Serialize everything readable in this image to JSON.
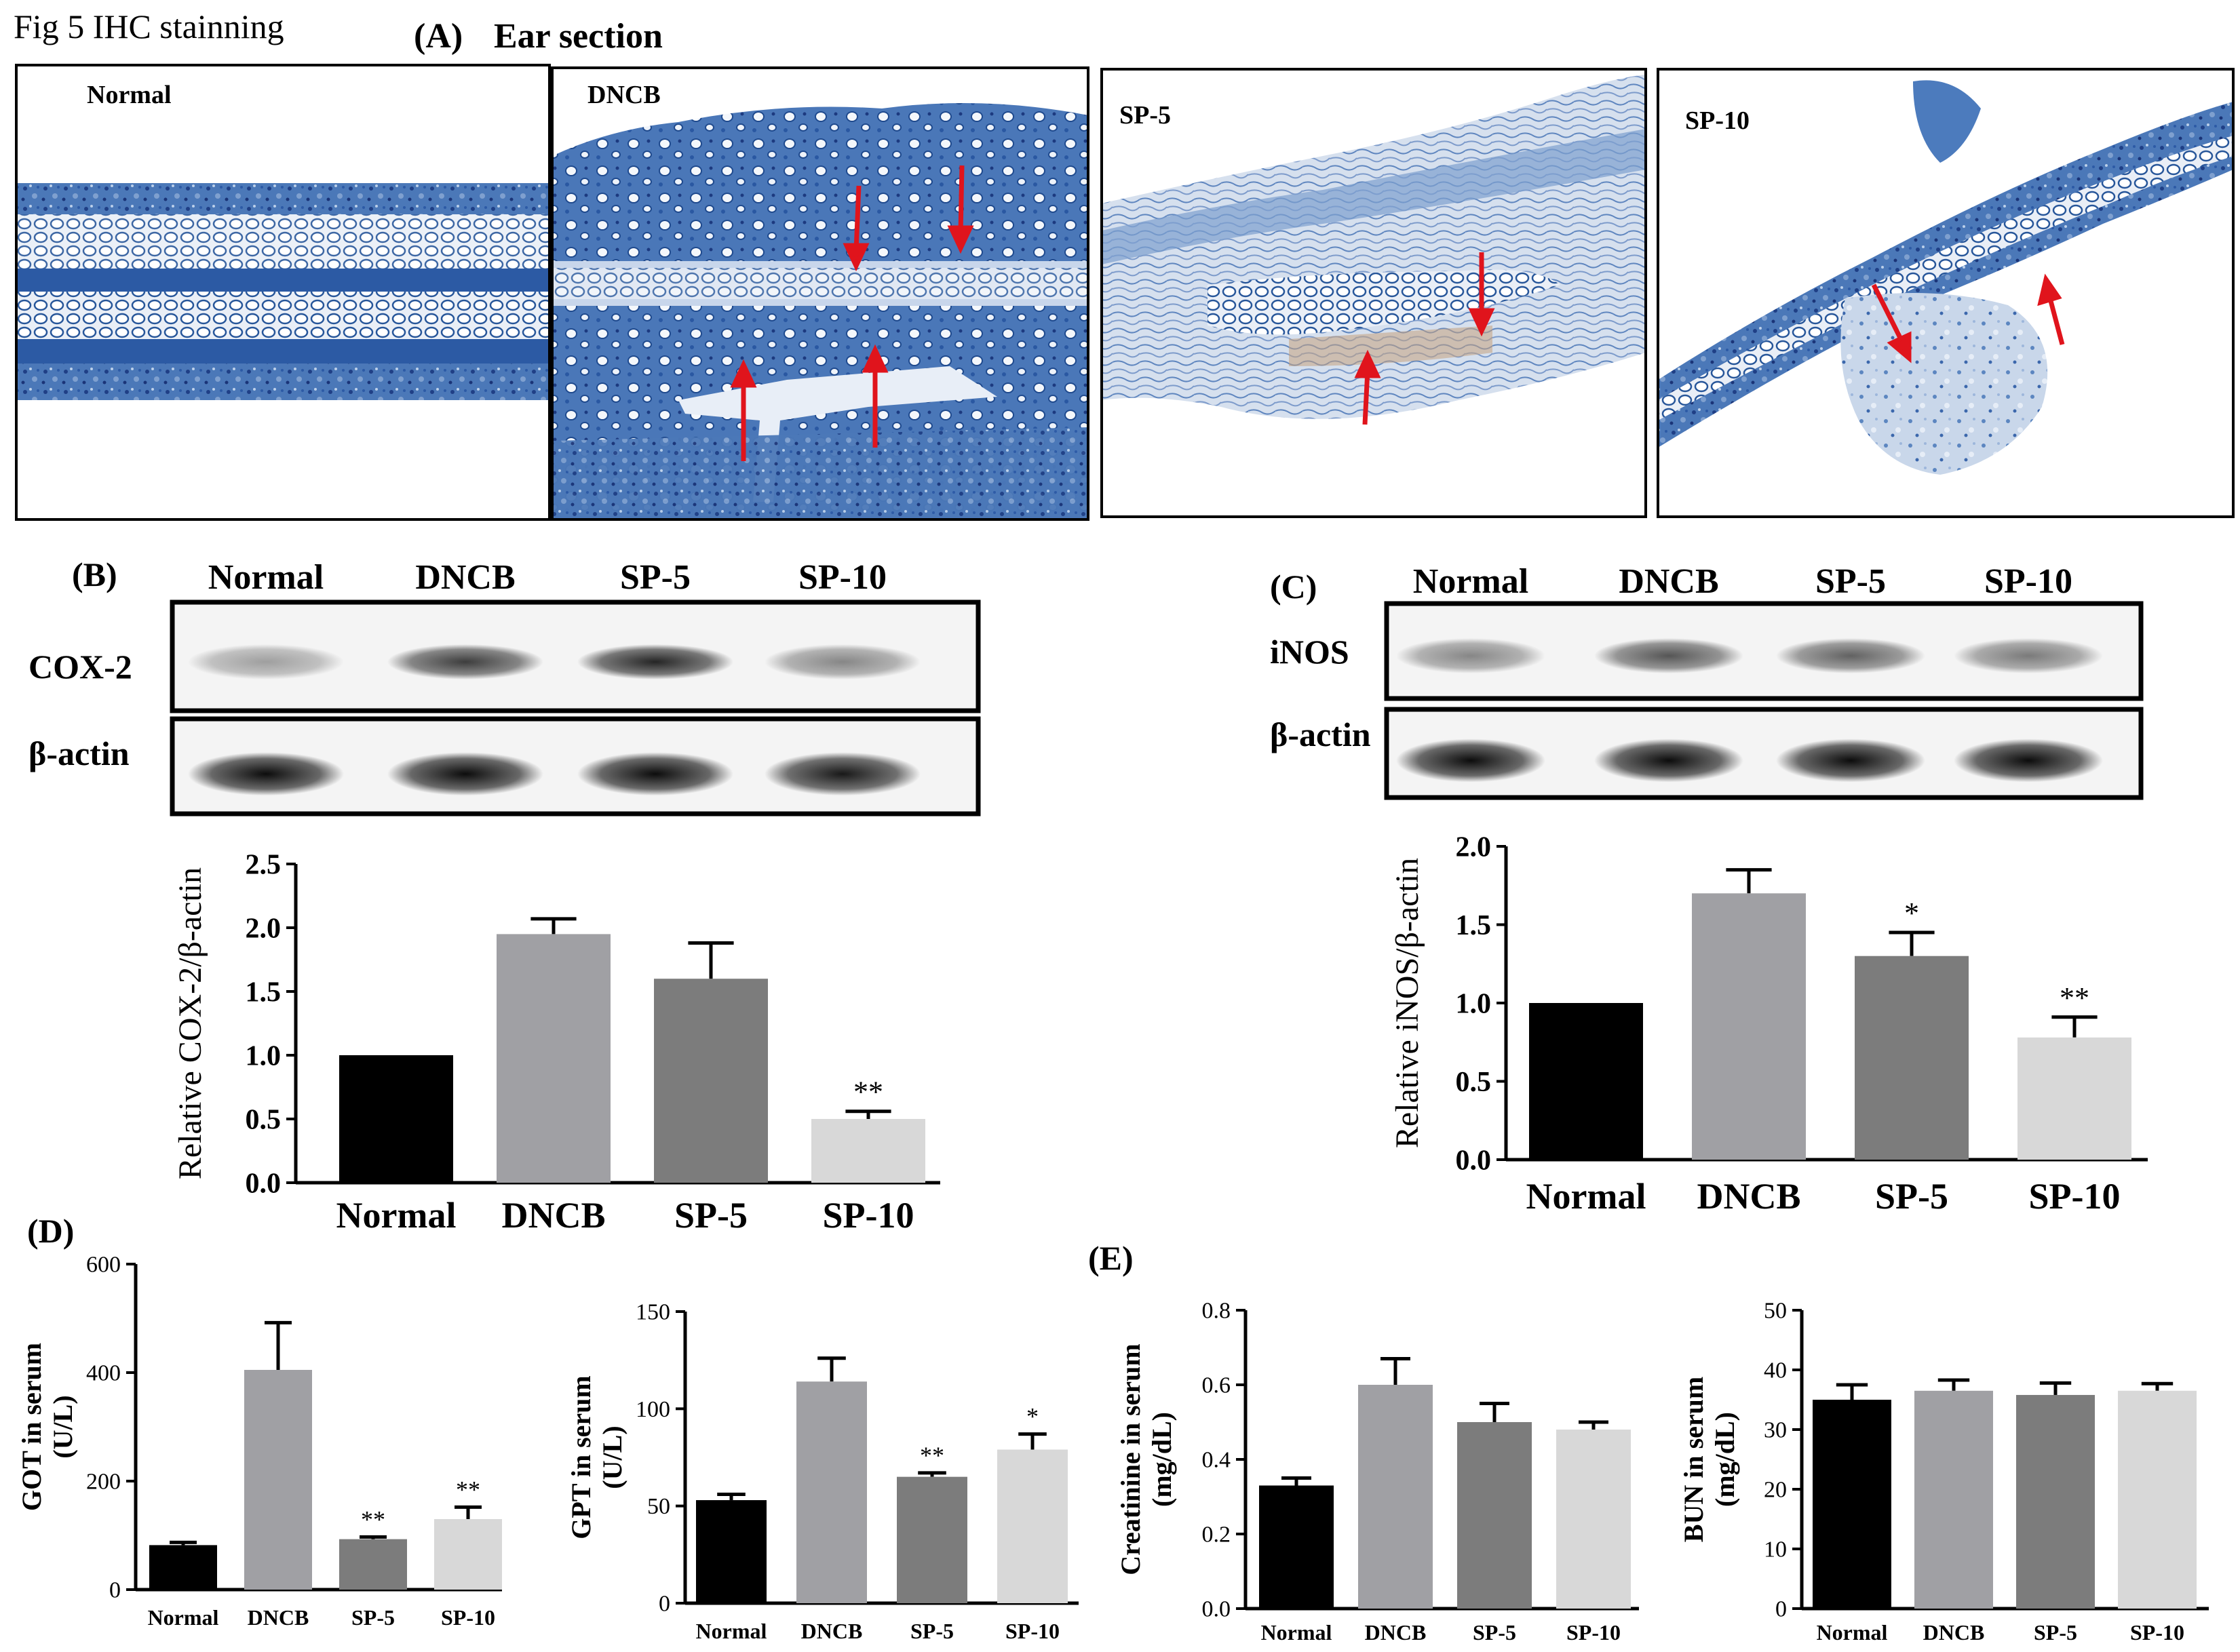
{
  "figure": {
    "title": "Fig 5  IHC stainning",
    "panel_a": {
      "letter": "(A)",
      "title": "Ear section"
    },
    "panel_b_letter": "(B)",
    "panel_c_letter": "(C)",
    "panel_d_letter": "(D)",
    "panel_e_letter": "(E)"
  },
  "ihc_panels": [
    {
      "label": "Normal",
      "arrows": 0
    },
    {
      "label": "DNCB",
      "arrows": 4
    },
    {
      "label": "SP-5",
      "arrows": 2
    },
    {
      "label": "SP-10",
      "arrows": 2
    }
  ],
  "blots": {
    "b": {
      "lanes": [
        "Normal",
        "DNCB",
        "SP-5",
        "SP-10"
      ],
      "rows": [
        {
          "label": "COX-2",
          "intensity": [
            0.35,
            0.75,
            0.85,
            0.45
          ]
        },
        {
          "label": "β-actin",
          "intensity": [
            0.95,
            0.95,
            0.95,
            0.9
          ]
        }
      ]
    },
    "c": {
      "lanes": [
        "Normal",
        "DNCB",
        "SP-5",
        "SP-10"
      ],
      "rows": [
        {
          "label": "iNOS",
          "intensity": [
            0.45,
            0.65,
            0.6,
            0.5
          ]
        },
        {
          "label": "β-actin",
          "intensity": [
            0.95,
            0.95,
            0.95,
            0.95
          ]
        }
      ]
    }
  },
  "colors": {
    "Normal": "#000000",
    "DNCB": "#a0a0a4",
    "SP-5": "#7c7c7c",
    "SP-10": "#d8d8d8",
    "arrow": "#e0141c",
    "stain": "#2f5aa0"
  },
  "chart_data": [
    {
      "id": "cox2",
      "type": "bar",
      "categories": [
        "Normal",
        "DNCB",
        "SP-5",
        "SP-10"
      ],
      "values": [
        1.0,
        1.95,
        1.6,
        0.5
      ],
      "errors": [
        0,
        0.12,
        0.28,
        0.06
      ],
      "significance": [
        "",
        "",
        "",
        "**"
      ],
      "ylabel": "Relative COX-2/β-actin",
      "xlabel": "",
      "ylim": [
        0,
        2.5
      ],
      "yticks": [
        "0.0",
        "0.5",
        "1.0",
        "1.5",
        "2.0",
        "2.5"
      ]
    },
    {
      "id": "inos",
      "type": "bar",
      "categories": [
        "Normal",
        "DNCB",
        "SP-5",
        "SP-10"
      ],
      "values": [
        1.0,
        1.7,
        1.3,
        0.78
      ],
      "errors": [
        0,
        0.15,
        0.15,
        0.13
      ],
      "significance": [
        "",
        "",
        "*",
        "**"
      ],
      "ylabel": "Relative iNOS/β-actin",
      "xlabel": "",
      "ylim": [
        0,
        2.0
      ],
      "yticks": [
        "0.0",
        "0.5",
        "1.0",
        "1.5",
        "2.0"
      ]
    },
    {
      "id": "got",
      "type": "bar",
      "categories": [
        "Normal",
        "DNCB",
        "SP-5",
        "SP-10"
      ],
      "values": [
        82,
        405,
        93,
        130
      ],
      "errors": [
        5,
        87,
        4,
        22
      ],
      "significance": [
        "",
        "",
        "**",
        "**"
      ],
      "ylabel": "GOT in serum\n(U/L)",
      "xlabel": "",
      "ylim": [
        0,
        600
      ],
      "yticks": [
        "0",
        "200",
        "400",
        "600"
      ]
    },
    {
      "id": "gpt",
      "type": "bar",
      "categories": [
        "Normal",
        "DNCB",
        "SP-5",
        "SP-10"
      ],
      "values": [
        53,
        114,
        65,
        79
      ],
      "errors": [
        3,
        12,
        2,
        8
      ],
      "significance": [
        "",
        "",
        "**",
        "*"
      ],
      "ylabel": "GPT in serum\n(U/L)",
      "xlabel": "",
      "ylim": [
        0,
        150
      ],
      "yticks": [
        "0",
        "50",
        "100",
        "150"
      ]
    },
    {
      "id": "creatinine",
      "type": "bar",
      "categories": [
        "Normal",
        "DNCB",
        "SP-5",
        "SP-10"
      ],
      "values": [
        0.33,
        0.6,
        0.5,
        0.48
      ],
      "errors": [
        0.02,
        0.07,
        0.05,
        0.02
      ],
      "significance": [
        "",
        "",
        "",
        ""
      ],
      "ylabel": "Creatinine in serum\n(mg/dL)",
      "xlabel": "",
      "ylim": [
        0,
        0.8
      ],
      "yticks": [
        "0.0",
        "0.2",
        "0.4",
        "0.6",
        "0.8"
      ]
    },
    {
      "id": "bun",
      "type": "bar",
      "categories": [
        "Normal",
        "DNCB",
        "SP-5",
        "SP-10"
      ],
      "values": [
        35,
        36.5,
        35.8,
        36.5
      ],
      "errors": [
        2.5,
        1.8,
        2,
        1.2
      ],
      "significance": [
        "",
        "",
        "",
        ""
      ],
      "ylabel": "BUN in serum\n(mg/dL)",
      "xlabel": "",
      "ylim": [
        0,
        50
      ],
      "yticks": [
        "0",
        "10",
        "20",
        "30",
        "40",
        "50"
      ]
    }
  ]
}
